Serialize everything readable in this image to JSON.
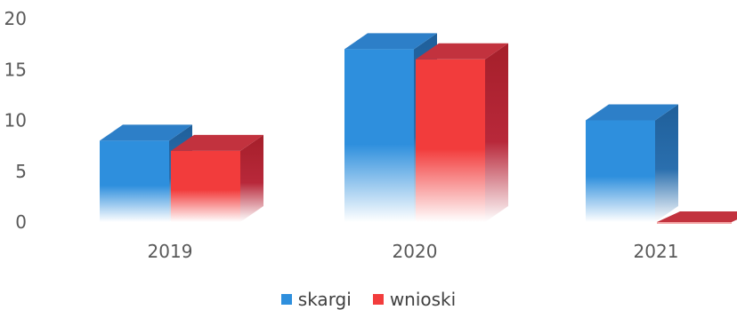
{
  "chart_data": {
    "type": "bar",
    "categories": [
      "2019",
      "2020",
      "2021"
    ],
    "series": [
      {
        "name": "skargi",
        "values": [
          8,
          17,
          10
        ],
        "color": "#2e8fdd"
      },
      {
        "name": "wnioski",
        "values": [
          7,
          16,
          0
        ],
        "color": "#f23c3c"
      }
    ],
    "y_ticks": [
      "0",
      "5",
      "10",
      "15",
      "20"
    ],
    "ylim": [
      0,
      20
    ],
    "grid": false,
    "legend_position": "bottom",
    "style": "3d-gradient"
  }
}
